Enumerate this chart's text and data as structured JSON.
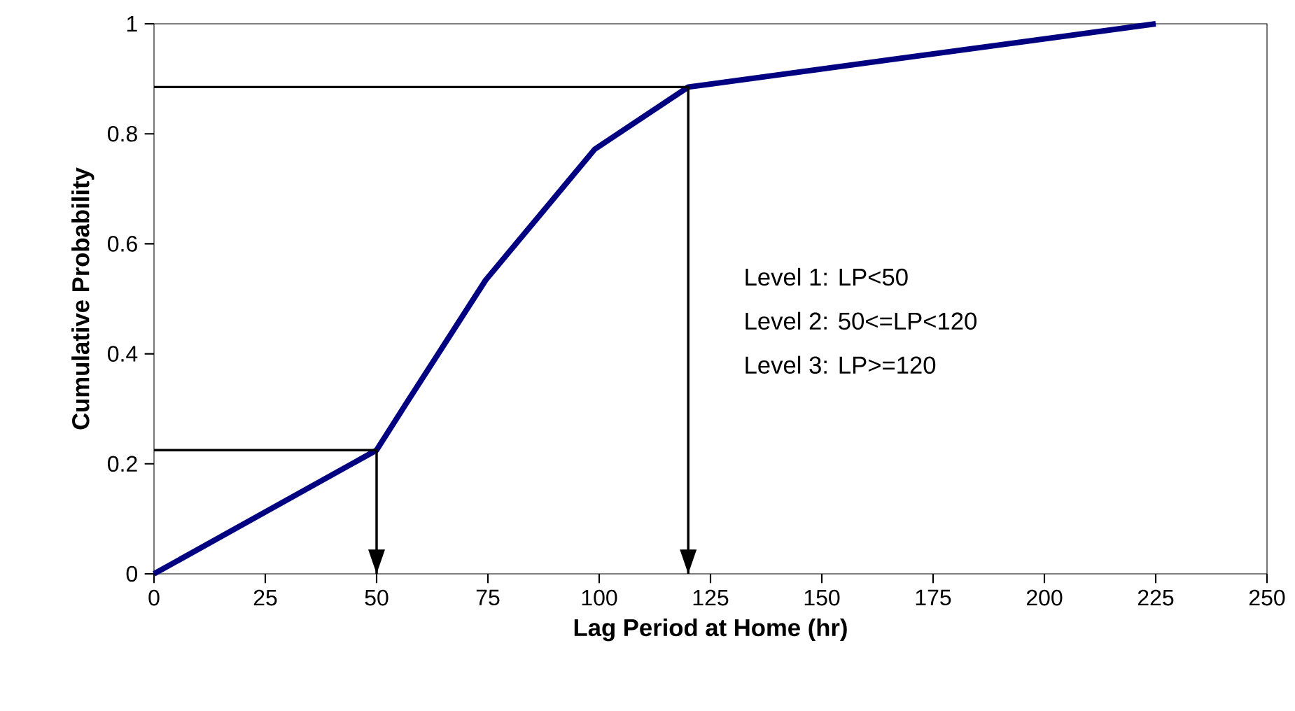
{
  "chart_data": {
    "type": "line",
    "xlabel": "Lag Period at Home (hr)",
    "ylabel": "Cumulative Probability",
    "xlim": [
      0,
      250
    ],
    "xticks": [
      0,
      25,
      50,
      75,
      100,
      125,
      150,
      175,
      200,
      225,
      250
    ],
    "ylim": [
      0,
      1
    ],
    "yticks": [
      0,
      0.2,
      0.4,
      0.6,
      0.8,
      1
    ],
    "grid": false,
    "marker": "none",
    "line_style": "solid",
    "series": [
      {
        "color": "#000080",
        "x": [
          0,
          50,
          57,
          74.5,
          99,
          120,
          225
        ],
        "values": [
          0,
          0.225,
          0.314,
          0.534,
          0.772,
          0.885,
          1
        ]
      },
      {
        "color": "#000000",
        "x": [
          0,
          50,
          50
        ],
        "values": [
          0.225,
          0.225,
          0
        ]
      },
      {
        "color": "#000000",
        "x": [
          0,
          120,
          120
        ],
        "values": [
          0.885,
          0.885,
          0
        ]
      }
    ],
    "annotations": [
      "Level 1:  LP<50",
      "Level 2: 50<=LP<120",
      "Level 3: LP>=120"
    ]
  }
}
